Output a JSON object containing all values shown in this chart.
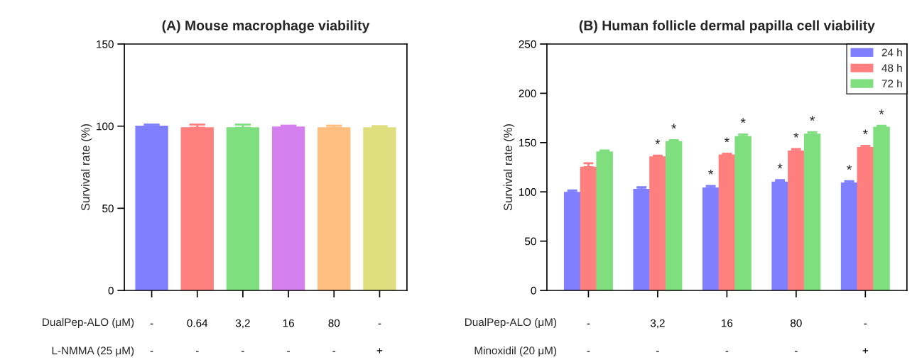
{
  "chart_data": [
    {
      "type": "bar",
      "title": "(A) Mouse macrophage viability",
      "ylabel": "Survival rate (%)",
      "categories": [
        "-\n-",
        "0.64\n-",
        "3,2\n-",
        "16\n-",
        "80\n-",
        "-\n+"
      ],
      "values": [
        100,
        99,
        99,
        99.5,
        99,
        99
      ],
      "colors": [
        "#7f7fff",
        "#ff7f7f",
        "#7fdf7f",
        "#d580ef",
        "#ffbf80",
        "#dfdf80"
      ],
      "errors": [
        [
          100,
          101
        ],
        [
          99,
          101
        ],
        [
          99,
          101
        ],
        [
          99.5,
          100.3
        ],
        [
          99,
          100.3
        ],
        [
          99,
          100
        ]
      ],
      "ylim": [
        0,
        150
      ],
      "yticks": [
        0,
        50,
        100,
        150
      ],
      "grid": false,
      "legend": false,
      "annotations": [
        "DualPep-ALO (μM)",
        "L-NMMA (25 μM)"
      ]
    },
    {
      "type": "bar",
      "title": "(B) Human follicle dermal papilla cell viability",
      "ylabel": "Survival rate (%)",
      "categories": [
        "-\n-",
        "3,2\n-",
        "16\n-",
        "80\n-",
        "-\n+"
      ],
      "series": [
        {
          "name": "24 h",
          "color": "#7f7fff",
          "values": [
            99.5,
            102.5,
            104,
            110,
            109
          ],
          "errors": [
            [
              99.5,
              101.4
            ],
            [
              102.5,
              104.7
            ],
            [
              104,
              106
            ],
            [
              110,
              112
            ],
            [
              109,
              110.8
            ]
          ],
          "value_labels": [
            null,
            null,
            "*",
            "*",
            "*"
          ]
        },
        {
          "name": "48 h",
          "color": "#ff7f7f",
          "values": [
            125,
            135.5,
            137.5,
            141.5,
            145
          ],
          "errors": [
            [
              125,
              129
            ],
            [
              135.5,
              136.7
            ],
            [
              137.5,
              138.7
            ],
            [
              141.5,
              143.4
            ],
            [
              145,
              146.7
            ]
          ],
          "value_labels": [
            null,
            "*",
            "*",
            "*",
            "*"
          ]
        },
        {
          "name": "72 h",
          "color": "#7fdf7f",
          "values": [
            140.5,
            151,
            156,
            158.5,
            165.5
          ],
          "errors": [
            [
              140.5,
              142
            ],
            [
              151,
              152.5
            ],
            [
              156,
              158.3
            ],
            [
              158.5,
              160.5
            ],
            [
              165.5,
              167
            ]
          ],
          "value_labels": [
            null,
            "*",
            "*",
            "*",
            "*"
          ]
        }
      ],
      "ylim": [
        0,
        250
      ],
      "yticks": [
        0,
        50,
        100,
        150,
        200,
        250
      ],
      "grid": false,
      "legend": "top right",
      "annotations": [
        "DualPep-ALO (μM)",
        "Minoxidil (20 μM)"
      ]
    }
  ]
}
